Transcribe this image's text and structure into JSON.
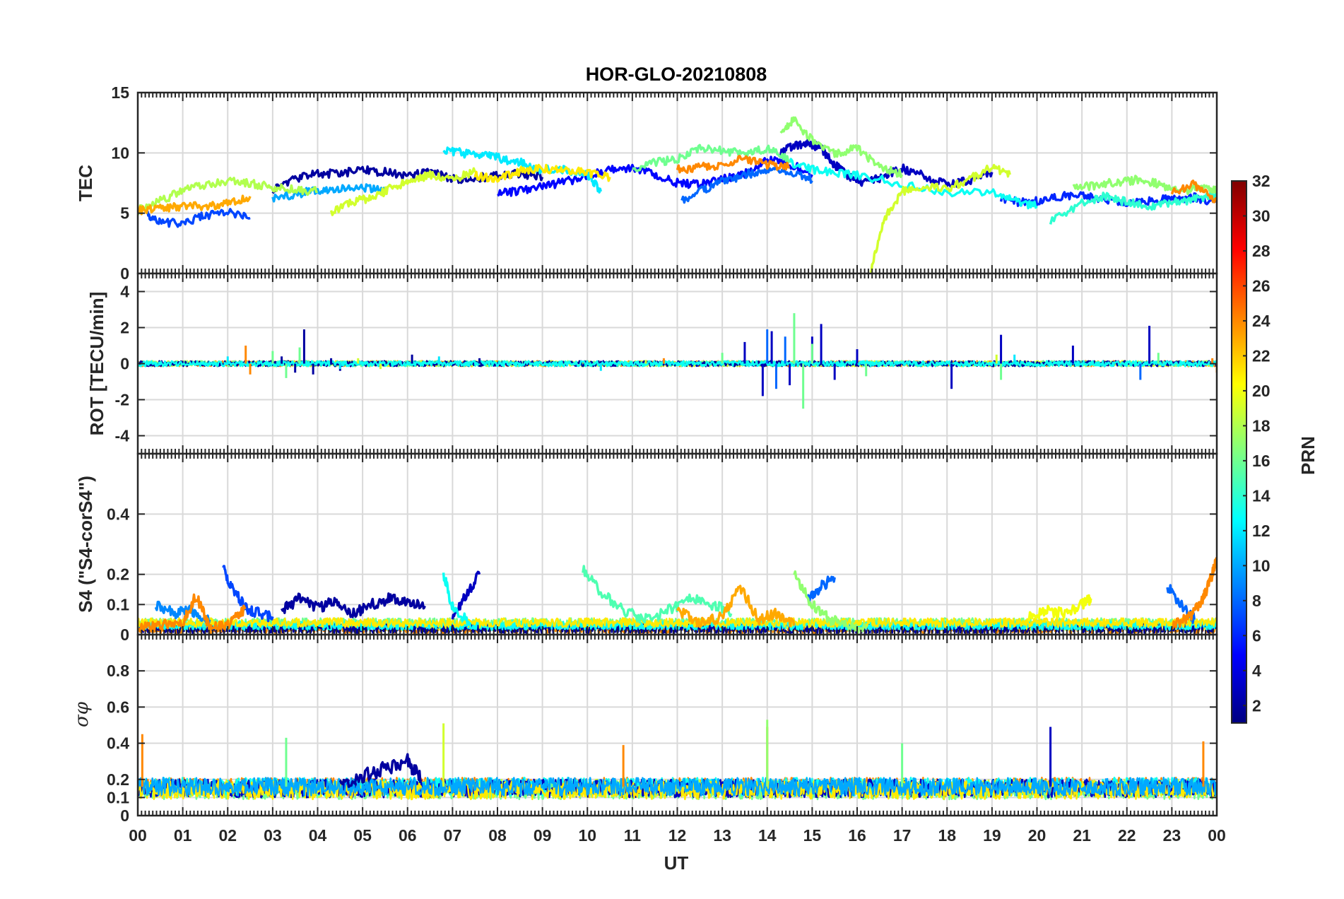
{
  "chart_data": {
    "type": "line",
    "title": "HOR-GLO-20210808",
    "xlabel": "UT",
    "x_tick_labels": [
      "00",
      "01",
      "02",
      "03",
      "04",
      "05",
      "06",
      "07",
      "08",
      "09",
      "10",
      "11",
      "12",
      "13",
      "14",
      "15",
      "16",
      "17",
      "18",
      "19",
      "20",
      "21",
      "22",
      "23",
      "00"
    ],
    "x_range_hours": [
      0,
      24
    ],
    "grid": true,
    "colorbar": {
      "label": "PRN",
      "colormap": "jet",
      "range": [
        1,
        32
      ],
      "tick_labels": [
        "2",
        "4",
        "6",
        "8",
        "10",
        "12",
        "14",
        "16",
        "18",
        "20",
        "22",
        "24",
        "26",
        "28",
        "30",
        "32"
      ],
      "placement": "right"
    },
    "panels": [
      {
        "id": "tec",
        "ylabel": "TEC",
        "ylim": [
          0,
          15
        ],
        "y_ticks": [
          0,
          5,
          10,
          15
        ],
        "y_tick_labels": [
          "0",
          "5",
          "10",
          "15"
        ],
        "series": [
          {
            "prn": 2,
            "x": [
              3.0,
              3.5,
              4.0,
              4.5,
              5.0,
              5.5,
              6.0,
              6.5,
              7.0,
              7.5,
              8.0,
              8.5,
              9.0
            ],
            "y": [
              7.0,
              7.8,
              8.3,
              8.3,
              8.6,
              8.4,
              8.1,
              8.4,
              7.8,
              7.9,
              8.1,
              8.3,
              8.0
            ]
          },
          {
            "prn": 3,
            "x": [
              14.3,
              14.6,
              14.9,
              15.2,
              15.5,
              15.8,
              16.1,
              16.5,
              17.0,
              17.5,
              18.0,
              18.5,
              19.0
            ],
            "y": [
              10.0,
              10.6,
              10.8,
              10.4,
              9.0,
              8.1,
              7.6,
              7.9,
              8.7,
              8.1,
              7.4,
              7.7,
              8.4
            ]
          },
          {
            "prn": 5,
            "x": [
              8.0,
              8.5,
              9.0,
              9.5,
              10.0,
              10.5,
              11.0,
              11.5,
              12.0,
              12.5,
              13.0,
              13.5,
              14.0,
              14.5,
              15.0
            ],
            "y": [
              6.6,
              6.9,
              7.2,
              7.6,
              8.1,
              8.6,
              8.8,
              8.2,
              7.5,
              7.4,
              7.8,
              8.3,
              9.4,
              9.1,
              8.2
            ]
          },
          {
            "prn": 6,
            "x": [
              19.2,
              19.6,
              20.0,
              20.5,
              21.0,
              21.5,
              22.0,
              22.5,
              23.0,
              23.5,
              24.0
            ],
            "y": [
              6.3,
              5.9,
              6.0,
              6.4,
              6.6,
              6.1,
              5.9,
              6.0,
              6.2,
              6.3,
              5.9
            ]
          },
          {
            "prn": 7,
            "x": [
              0.2,
              0.5,
              1.0,
              1.5,
              2.0,
              2.5
            ],
            "y": [
              5.0,
              4.2,
              4.2,
              4.8,
              5.1,
              4.6
            ]
          },
          {
            "prn": 8,
            "x": [
              12.1,
              12.6,
              13.0,
              13.5,
              14.0,
              14.5,
              15.0
            ],
            "y": [
              6.0,
              7.0,
              7.6,
              8.2,
              8.6,
              8.5,
              7.7
            ]
          },
          {
            "prn": 10,
            "x": [
              3.0,
              3.5,
              4.0,
              4.5,
              5.0,
              5.5
            ],
            "y": [
              6.2,
              6.6,
              6.9,
              7.0,
              7.1,
              7.0
            ]
          },
          {
            "prn": 12,
            "x": [
              6.8,
              7.2,
              7.6,
              8.0,
              8.5,
              9.0,
              9.5,
              10.0,
              10.3
            ],
            "y": [
              10.2,
              10.0,
              9.8,
              9.6,
              9.2,
              8.6,
              8.6,
              8.3,
              6.8
            ]
          },
          {
            "prn": 13,
            "x": [
              14.5,
              15.0,
              15.5,
              16.0,
              17.0,
              18.0,
              19.0,
              19.5,
              20.0
            ],
            "y": [
              9.2,
              8.6,
              8.4,
              8.2,
              7.4,
              6.6,
              6.8,
              6.0,
              5.6
            ]
          },
          {
            "prn": 14,
            "x": [
              20.3,
              21.0,
              21.5,
              22.0,
              22.5,
              23.0,
              23.5,
              24.0
            ],
            "y": [
              4.3,
              5.9,
              6.4,
              5.9,
              5.6,
              5.8,
              6.2,
              6.6
            ]
          },
          {
            "prn": 16,
            "x": [
              11.0,
              11.5,
              12.0,
              12.5,
              13.0,
              13.5,
              14.0,
              14.5
            ],
            "y": [
              8.6,
              9.2,
              9.5,
              10.5,
              10.2,
              10.0,
              10.3,
              9.4
            ]
          },
          {
            "prn": 17,
            "x": [
              20.8,
              21.3,
              21.8,
              22.3,
              22.8,
              23.3,
              23.8,
              24.0
            ],
            "y": [
              7.1,
              7.3,
              7.6,
              7.8,
              7.3,
              6.9,
              7.2,
              6.8
            ]
          },
          {
            "prn": 18,
            "x": [
              0.0,
              0.5,
              1.0,
              1.5,
              2.0,
              2.5,
              3.0,
              3.5,
              4.0
            ],
            "y": [
              5.2,
              6.0,
              6.9,
              7.4,
              7.6,
              7.5,
              7.1,
              7.0,
              6.8
            ]
          },
          {
            "prn": 17,
            "x": [
              14.3,
              14.6,
              15.0,
              15.5,
              16.0,
              16.5,
              17.0
            ],
            "y": [
              11.5,
              12.8,
              11.0,
              9.9,
              10.4,
              8.8,
              8.2
            ]
          },
          {
            "prn": 19,
            "x": [
              4.3,
              4.8,
              5.2,
              5.6,
              6.0,
              6.5,
              7.0,
              7.5
            ],
            "y": [
              5.0,
              6.0,
              6.3,
              7.0,
              7.6,
              8.2,
              7.8,
              8.4
            ]
          },
          {
            "prn": 19,
            "x": [
              16.3,
              16.6,
              17.0,
              17.5,
              18.0,
              18.5,
              19.0,
              19.4
            ],
            "y": [
              0.2,
              4.5,
              6.8,
              7.3,
              7.0,
              7.8,
              8.9,
              8.2
            ]
          },
          {
            "prn": 21,
            "x": [
              7.5,
              8.0,
              8.5,
              9.0,
              9.5,
              10.0,
              10.5
            ],
            "y": [
              8.1,
              7.8,
              8.5,
              8.7,
              8.6,
              8.3,
              8.0
            ]
          },
          {
            "prn": 23,
            "x": [
              0.0,
              0.5,
              1.0,
              1.5,
              2.0,
              2.5
            ],
            "y": [
              5.2,
              5.4,
              5.6,
              5.6,
              5.8,
              6.4
            ]
          },
          {
            "prn": 24,
            "x": [
              12.0,
              12.5,
              13.0,
              13.5,
              14.0,
              14.5
            ],
            "y": [
              8.6,
              8.8,
              9.0,
              9.6,
              9.0,
              8.8
            ]
          },
          {
            "prn": 24,
            "x": [
              23.0,
              23.5,
              24.0
            ],
            "y": [
              6.8,
              7.4,
              6.0
            ]
          }
        ]
      },
      {
        "id": "rot",
        "ylabel": "ROT [TECU/min]",
        "ylim": [
          -5,
          5
        ],
        "y_ticks": [
          -4,
          -2,
          0,
          2,
          4
        ],
        "y_tick_labels": [
          "-4",
          "-2",
          "0",
          "2",
          "4"
        ],
        "series": [
          {
            "prn": 2,
            "x": [
              3.2,
              3.5,
              3.7,
              3.9,
              4.3,
              4.5,
              6.1,
              7.6
            ],
            "y": [
              0.4,
              -0.5,
              1.9,
              -0.6,
              0.3,
              -0.4,
              0.5,
              0.3
            ]
          },
          {
            "prn": 3,
            "x": [
              13.5,
              13.9,
              14.1,
              14.5,
              15.0,
              15.2,
              15.5,
              16.0,
              18.1,
              19.2,
              20.8,
              22.5
            ],
            "y": [
              1.2,
              -1.8,
              1.8,
              -1.2,
              1.5,
              2.2,
              -0.9,
              0.8,
              -1.4,
              1.6,
              1.0,
              2.1
            ]
          },
          {
            "prn": 8,
            "x": [
              14.0,
              14.2,
              14.4,
              22.3
            ],
            "y": [
              1.9,
              -1.4,
              1.5,
              -0.9
            ]
          },
          {
            "prn": 12,
            "x": [
              2.0,
              4.5,
              6.7,
              10.3,
              19.5
            ],
            "y": [
              0.4,
              -0.3,
              0.4,
              -0.4,
              0.5
            ]
          },
          {
            "prn": 16,
            "x": [
              3.0,
              3.3,
              3.6,
              13.0,
              14.6,
              14.8,
              15.0,
              16.2,
              19.2,
              22.7
            ],
            "y": [
              0.7,
              -0.8,
              0.9,
              0.6,
              2.8,
              -2.5,
              1.1,
              -0.7,
              -0.9,
              0.6
            ]
          },
          {
            "prn": 19,
            "x": [
              4.9,
              5.4,
              11.3,
              19.1
            ],
            "y": [
              0.3,
              -0.3,
              0.2,
              0.5
            ]
          },
          {
            "prn": 24,
            "x": [
              2.4,
              2.5,
              11.7,
              23.9,
              24.0
            ],
            "y": [
              1.0,
              -0.6,
              0.3,
              0.3,
              -0.5
            ]
          }
        ]
      },
      {
        "id": "s4",
        "ylabel": "S4 (\"S4-corS4\")",
        "ylim": [
          0,
          0.6
        ],
        "y_ticks": [
          0,
          0.1,
          0.2,
          0.4
        ],
        "y_tick_labels": [
          "0",
          "0.1",
          "0.2",
          "0.4"
        ],
        "series": [
          {
            "prn": 2,
            "x": [
              3.2,
              3.6,
              4.0,
              4.4,
              4.8,
              5.2,
              5.6,
              6.0,
              6.4
            ],
            "y": [
              0.08,
              0.12,
              0.09,
              0.11,
              0.07,
              0.1,
              0.12,
              0.11,
              0.09
            ]
          },
          {
            "prn": 3,
            "x": [
              7.0,
              7.3,
              7.6
            ],
            "y": [
              0.06,
              0.13,
              0.2
            ]
          },
          {
            "prn": 7,
            "x": [
              1.9,
              2.1,
              2.4,
              2.7,
              3.0
            ],
            "y": [
              0.22,
              0.15,
              0.09,
              0.07,
              0.06
            ]
          },
          {
            "prn": 9,
            "x": [
              0.4,
              0.8,
              1.2,
              1.6
            ],
            "y": [
              0.1,
              0.07,
              0.08,
              0.05
            ]
          },
          {
            "prn": 8,
            "x": [
              14.9,
              15.2,
              15.5
            ],
            "y": [
              0.12,
              0.16,
              0.19
            ]
          },
          {
            "prn": 8,
            "x": [
              22.9,
              23.2,
              23.5
            ],
            "y": [
              0.16,
              0.1,
              0.05
            ]
          },
          {
            "prn": 13,
            "x": [
              6.8,
              7.0,
              7.4
            ],
            "y": [
              0.2,
              0.09,
              0.04
            ]
          },
          {
            "prn": 15,
            "x": [
              9.9,
              10.3,
              10.8,
              11.3,
              11.8,
              12.3,
              12.8,
              13.2
            ],
            "y": [
              0.22,
              0.14,
              0.08,
              0.05,
              0.08,
              0.12,
              0.1,
              0.07
            ]
          },
          {
            "prn": 17,
            "x": [
              14.6,
              15.0,
              15.4,
              15.8,
              16.2
            ],
            "y": [
              0.2,
              0.1,
              0.05,
              0.03,
              0.02
            ]
          },
          {
            "prn": 20,
            "x": [
              19.8,
              20.2,
              20.6,
              21.0,
              21.2
            ],
            "y": [
              0.06,
              0.08,
              0.07,
              0.1,
              0.12
            ]
          },
          {
            "prn": 23,
            "x": [
              12.0,
              12.5,
              13.0,
              13.4,
              13.8,
              14.2,
              14.6
            ],
            "y": [
              0.08,
              0.04,
              0.06,
              0.16,
              0.05,
              0.07,
              0.03
            ]
          },
          {
            "prn": 24,
            "x": [
              0.0,
              0.5,
              1.0,
              1.3,
              1.6,
              2.0,
              2.4
            ],
            "y": [
              0.02,
              0.03,
              0.04,
              0.13,
              0.02,
              0.03,
              0.09
            ]
          },
          {
            "prn": 24,
            "x": [
              23.0,
              23.4,
              23.7,
              23.9,
              24.0
            ],
            "y": [
              0.03,
              0.06,
              0.12,
              0.2,
              0.25
            ]
          }
        ]
      },
      {
        "id": "sigma_phi",
        "ylabel": "σφ",
        "ylim": [
          0,
          1
        ],
        "y_ticks": [
          0,
          0.1,
          0.2,
          0.4,
          0.6,
          0.8
        ],
        "y_tick_labels": [
          "0",
          "0.1",
          "0.2",
          "0.4",
          "0.6",
          "0.8"
        ],
        "series": [
          {
            "prn": 2,
            "x": [
              4.5,
              5.0,
              5.5,
              6.0,
              6.3
            ],
            "y": [
              0.18,
              0.22,
              0.26,
              0.3,
              0.2
            ]
          },
          {
            "prn": 19,
            "x": [
              6.8
            ],
            "y": [
              0.51
            ]
          },
          {
            "prn": 24,
            "x": [
              0.1
            ],
            "y": [
              0.45
            ]
          },
          {
            "prn": 24,
            "x": [
              10.8
            ],
            "y": [
              0.39
            ]
          },
          {
            "prn": 24,
            "x": [
              14.0
            ],
            "y": [
              0.49
            ]
          },
          {
            "prn": 17,
            "x": [
              14.0
            ],
            "y": [
              0.53
            ]
          },
          {
            "prn": 16,
            "x": [
              3.3
            ],
            "y": [
              0.43
            ]
          },
          {
            "prn": 16,
            "x": [
              17.0
            ],
            "y": [
              0.4
            ]
          },
          {
            "prn": 3,
            "x": [
              20.3
            ],
            "y": [
              0.49
            ]
          },
          {
            "prn": 24,
            "x": [
              23.7
            ],
            "y": [
              0.41
            ]
          }
        ]
      }
    ]
  }
}
